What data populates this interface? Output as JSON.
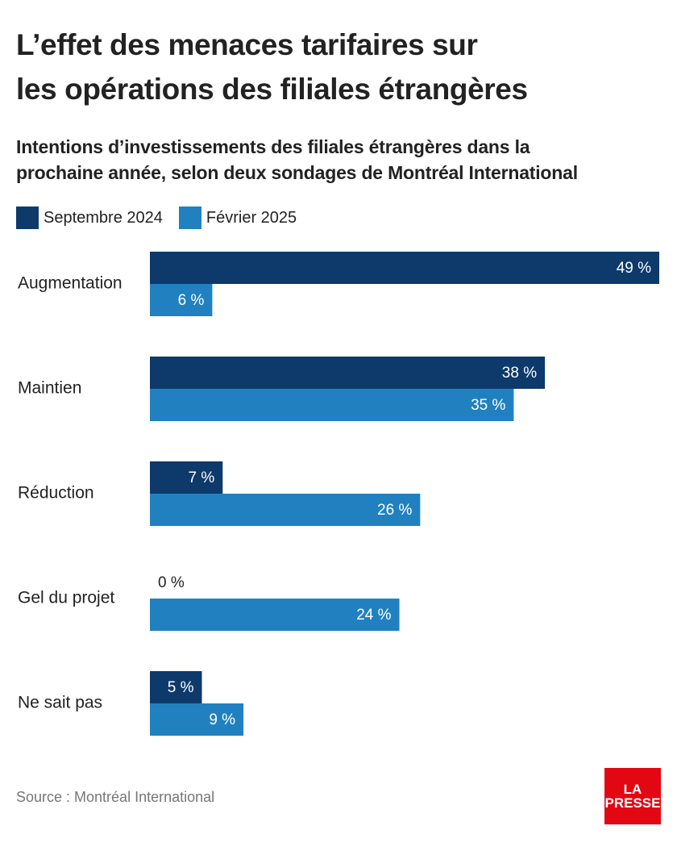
{
  "title_line1": "L’effet des menaces tarifaires sur",
  "title_line2": "les opérations des filiales étrangères",
  "subtitle_line1": "Intentions d’investissements des filiales étrangères dans la",
  "subtitle_line2": "prochaine année, selon deux sondages de Montréal International",
  "legend": [
    {
      "label": "Septembre 2024",
      "color": "#0d3a6b"
    },
    {
      "label": "Février 2025",
      "color": "#2181c0"
    }
  ],
  "source": "Source : Montréal International",
  "logo": {
    "line1": "LA",
    "line2": "PRESSE"
  },
  "chart_data": {
    "type": "bar",
    "orientation": "horizontal",
    "categories": [
      "Augmentation",
      "Maintien",
      "Réduction",
      "Gel du projet",
      "Ne sait pas"
    ],
    "series": [
      {
        "name": "Septembre 2024",
        "color": "#0d3a6b",
        "values": [
          49,
          38,
          7,
          0,
          5
        ],
        "labels": [
          "49 %",
          "38 %",
          "7 %",
          "0 %",
          "5 %"
        ]
      },
      {
        "name": "Février 2025",
        "color": "#2181c0",
        "values": [
          6,
          35,
          26,
          24,
          9
        ],
        "labels": [
          "6 %",
          "35 %",
          "26 %",
          "24 %",
          "9 %"
        ]
      }
    ],
    "xlim": [
      0,
      49
    ],
    "axis_visible": false,
    "grid": false,
    "legend_position": "top-left"
  }
}
